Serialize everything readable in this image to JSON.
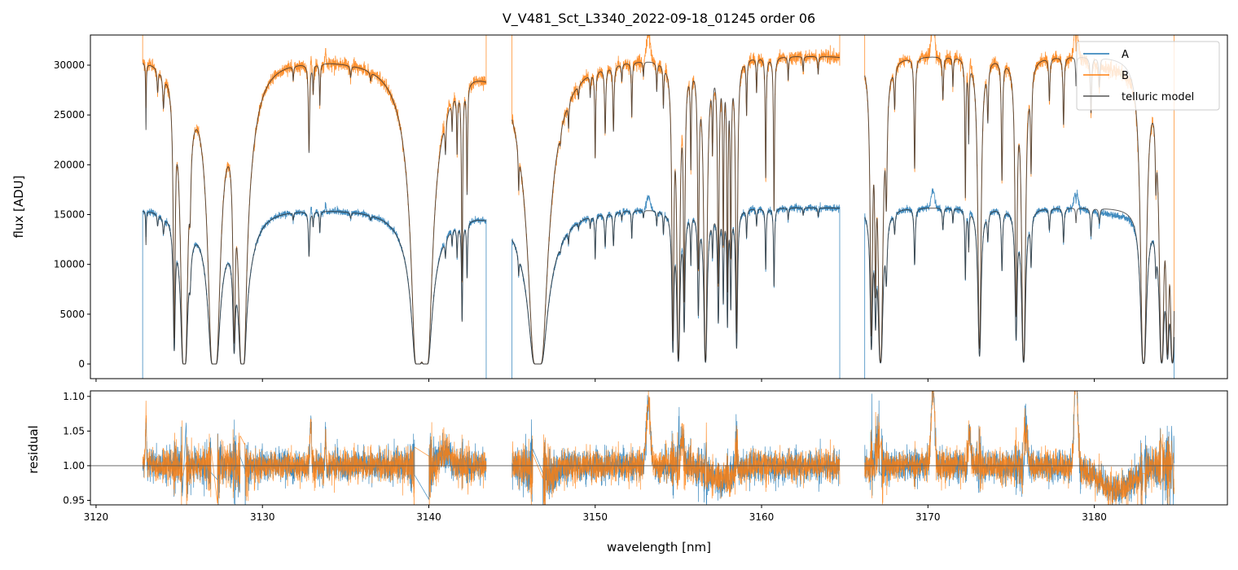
{
  "chart_data": {
    "type": "line",
    "title": "V_V481_Sct_L3340_2022-09-18_01245  order 06",
    "xlabel": "wavelength [nm]",
    "ylabel_top": "flux [ADU]",
    "ylabel_bottom": "residual",
    "xlim": [
      3119.66,
      3188.0
    ],
    "ylim_top": [
      -1470,
      33025
    ],
    "ylim_bottom": [
      0.9435,
      1.108
    ],
    "xticks": [
      3120,
      3130,
      3140,
      3150,
      3160,
      3170,
      3180
    ],
    "yticks_top": [
      0,
      5000,
      10000,
      15000,
      20000,
      25000,
      30000
    ],
    "yticks_bottom": [
      0.95,
      1.0,
      1.05,
      1.1
    ],
    "ytick_labels_bottom": [
      "0.95",
      "1.00",
      "1.05",
      "1.10"
    ],
    "residual_reference": 1.0,
    "legend": {
      "placement": "top-right",
      "entries": [
        "A",
        "B",
        "telluric model"
      ]
    },
    "colors": {
      "A": "#1f77b4",
      "B": "#ff7f0e",
      "model": "#333333",
      "reference": "#555555"
    },
    "series_continuum": {
      "A": 15800,
      "B": 31100
    },
    "segments": [
      [
        3122.8,
        3143.45
      ],
      [
        3145.0,
        3164.7
      ],
      [
        3166.2,
        3184.8
      ]
    ],
    "telluric_lines": [
      [
        3123.0,
        0.25,
        0.02
      ],
      [
        3123.7,
        0.08,
        0.04
      ],
      [
        3124.05,
        0.12,
        0.05
      ],
      [
        3124.7,
        2.3,
        0.04
      ],
      [
        3125.3,
        20,
        0.05
      ],
      [
        3125.65,
        0.3,
        0.05
      ],
      [
        3127.1,
        50,
        0.05
      ],
      [
        3127.1,
        0.25,
        0.5
      ],
      [
        3128.3,
        2.2,
        0.05
      ],
      [
        3128.8,
        30,
        0.045
      ],
      [
        3129.0,
        0.3,
        0.6
      ],
      [
        3131.85,
        0.05,
        0.03
      ],
      [
        3132.8,
        0.35,
        0.04
      ],
      [
        3133.05,
        0.1,
        0.03
      ],
      [
        3133.45,
        0.15,
        0.03
      ],
      [
        3135.3,
        0.04,
        0.04
      ],
      [
        3136.5,
        0.03,
        0.04
      ],
      [
        3139.35,
        50,
        0.05
      ],
      [
        3139.8,
        50,
        0.05
      ],
      [
        3139.6,
        0.35,
        0.8
      ],
      [
        3141.0,
        0.15,
        0.04
      ],
      [
        3141.4,
        0.12,
        0.03
      ],
      [
        3141.7,
        0.25,
        0.03
      ],
      [
        3142.0,
        1.2,
        0.03
      ],
      [
        3142.3,
        0.5,
        0.03
      ],
      [
        3145.4,
        0.2,
        0.03
      ],
      [
        3146.55,
        60,
        0.07
      ],
      [
        3146.6,
        0.4,
        0.9
      ],
      [
        3147.9,
        0.05,
        0.04
      ],
      [
        3148.4,
        0.1,
        0.03
      ],
      [
        3149.0,
        0.05,
        0.03
      ],
      [
        3149.7,
        0.08,
        0.03
      ],
      [
        3150.0,
        0.35,
        0.03
      ],
      [
        3150.6,
        0.25,
        0.04
      ],
      [
        3151.1,
        0.25,
        0.04
      ],
      [
        3151.6,
        0.06,
        0.03
      ],
      [
        3152.2,
        0.2,
        0.03
      ],
      [
        3152.9,
        0.05,
        0.03
      ],
      [
        3153.7,
        0.1,
        0.03
      ],
      [
        3154.1,
        0.15,
        0.03
      ],
      [
        3154.67,
        2.5,
        0.04
      ],
      [
        3155.0,
        4,
        0.05
      ],
      [
        3155.35,
        1.5,
        0.04
      ],
      [
        3155.75,
        0.4,
        0.03
      ],
      [
        3156.2,
        1.1,
        0.04
      ],
      [
        3156.63,
        4.5,
        0.05
      ],
      [
        3157.05,
        0.3,
        0.03
      ],
      [
        3157.4,
        1.3,
        0.04
      ],
      [
        3157.7,
        0.9,
        0.03
      ],
      [
        3157.95,
        1.4,
        0.03
      ],
      [
        3158.15,
        1.0,
        0.03
      ],
      [
        3158.5,
        2.3,
        0.04
      ],
      [
        3159.1,
        0.2,
        0.03
      ],
      [
        3159.7,
        0.12,
        0.03
      ],
      [
        3160.25,
        0.5,
        0.03
      ],
      [
        3160.75,
        0.7,
        0.03
      ],
      [
        3161.6,
        0.08,
        0.03
      ],
      [
        3162.5,
        0.05,
        0.03
      ],
      [
        3163.4,
        0.06,
        0.03
      ],
      [
        3166.6,
        2.3,
        0.05
      ],
      [
        3166.85,
        1.2,
        0.04
      ],
      [
        3167.15,
        5,
        0.07
      ],
      [
        3167.5,
        0.5,
        0.05
      ],
      [
        3168.0,
        0.15,
        0.04
      ],
      [
        3169.2,
        0.45,
        0.04
      ],
      [
        3170.9,
        0.15,
        0.04
      ],
      [
        3171.5,
        0.1,
        0.03
      ],
      [
        3172.25,
        0.6,
        0.03
      ],
      [
        3172.45,
        0.3,
        0.03
      ],
      [
        3173.1,
        3,
        0.06
      ],
      [
        3173.6,
        0.2,
        0.04
      ],
      [
        3174.45,
        0.5,
        0.04
      ],
      [
        3175.3,
        1.8,
        0.05
      ],
      [
        3175.75,
        4.5,
        0.06
      ],
      [
        3176.2,
        0.4,
        0.04
      ],
      [
        3177.3,
        0.15,
        0.04
      ],
      [
        3178.15,
        0.25,
        0.04
      ],
      [
        3178.9,
        0.1,
        0.03
      ],
      [
        3179.8,
        0.2,
        0.04
      ],
      [
        3180.3,
        0.1,
        0.04
      ],
      [
        3182.96,
        6,
        0.08
      ],
      [
        3183.7,
        0.3,
        0.04
      ],
      [
        3184.05,
        5,
        0.07
      ],
      [
        3184.4,
        3,
        0.06
      ],
      [
        3184.7,
        5,
        0.07
      ]
    ],
    "residual_features": [
      [
        3123.0,
        0.07,
        0.03
      ],
      [
        3132.9,
        0.06,
        0.05
      ],
      [
        3133.8,
        0.05,
        0.03
      ],
      [
        3141.0,
        0.02,
        0.3
      ],
      [
        3147.0,
        -0.015,
        0.6
      ],
      [
        3153.2,
        0.09,
        0.12
      ],
      [
        3155.2,
        0.04,
        0.1
      ],
      [
        3157.5,
        -0.02,
        0.8
      ],
      [
        3158.5,
        0.05,
        0.05
      ],
      [
        3167.0,
        0.04,
        0.1
      ],
      [
        3170.3,
        0.12,
        0.1
      ],
      [
        3172.5,
        0.05,
        0.08
      ],
      [
        3175.9,
        0.05,
        0.1
      ],
      [
        3178.9,
        0.14,
        0.1
      ],
      [
        3181.3,
        -0.035,
        1.0
      ]
    ],
    "residual_noise_sigma": 0.011
  }
}
